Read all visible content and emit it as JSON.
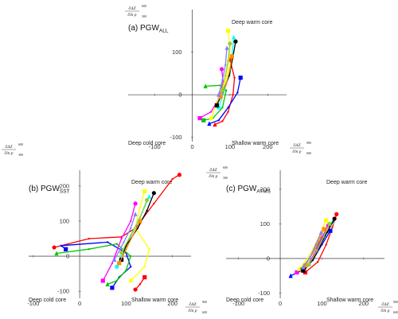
{
  "figure": {
    "colors": {
      "axis": "#555555",
      "series": [
        "#ff0000",
        "#0000ff",
        "#00c800",
        "#ff00ff",
        "#ffff00",
        "#00ffff",
        "#000000",
        "#ff8c00",
        "#8080ff",
        "#9acd32"
      ]
    }
  },
  "chart_data": [
    {
      "type": "line",
      "panel": "a",
      "title": "(a) PGW",
      "title_sub": "ALL",
      "xlabel_num": "∂ΔZ",
      "xlabel_den": "∂ln p",
      "xlabel_sup": "900",
      "xlabel_sub": "600",
      "ylabel_num": "∂ΔZ",
      "ylabel_den": "∂ln p",
      "ylabel_sup": "600",
      "ylabel_sub": "300",
      "xlim": [
        -170,
        250
      ],
      "ylim": [
        -110,
        200
      ],
      "xticks": [
        -100,
        0,
        100,
        200
      ],
      "yticks": [
        -100,
        0,
        100
      ],
      "quadrants": {
        "top_right": "Deep warm core",
        "bottom_left": "Deep cold core",
        "bottom_right": "Shallow warm core"
      },
      "series": [
        {
          "color": "#ff0000",
          "values": [
            [
              100,
              82
            ],
            [
              112,
              40
            ],
            [
              108,
              0
            ],
            [
              95,
              -40
            ],
            [
              80,
              -62
            ],
            [
              60,
              -70
            ]
          ]
        },
        {
          "color": "#0000ff",
          "values": [
            [
              128,
              40
            ],
            [
              120,
              5
            ],
            [
              95,
              -30
            ],
            [
              70,
              -60
            ],
            [
              45,
              -68
            ]
          ]
        },
        {
          "color": "#00c800",
          "values": [
            [
              35,
              20
            ],
            [
              75,
              22
            ],
            [
              90,
              10
            ],
            [
              80,
              -30
            ],
            [
              55,
              -55
            ],
            [
              30,
              -60
            ]
          ]
        },
        {
          "color": "#ff00ff",
          "values": [
            [
              78,
              60
            ],
            [
              82,
              30
            ],
            [
              70,
              -10
            ],
            [
              50,
              -40
            ],
            [
              20,
              -55
            ]
          ]
        },
        {
          "color": "#ffff00",
          "values": [
            [
              95,
              150
            ],
            [
              100,
              110
            ],
            [
              95,
              60
            ],
            [
              85,
              20
            ],
            [
              65,
              -20
            ],
            [
              50,
              -55
            ]
          ]
        },
        {
          "color": "#00ffff",
          "values": [
            [
              110,
              135
            ],
            [
              105,
              90
            ],
            [
              100,
              50
            ],
            [
              85,
              10
            ],
            [
              70,
              -30
            ]
          ]
        },
        {
          "color": "#000000",
          "values": [
            [
              115,
              125
            ],
            [
              108,
              90
            ],
            [
              98,
              45
            ],
            [
              80,
              5
            ],
            [
              65,
              -25
            ]
          ]
        },
        {
          "color": "#ff8c00",
          "values": [
            [
              105,
              90
            ],
            [
              100,
              60
            ],
            [
              90,
              25
            ],
            [
              75,
              -5
            ]
          ]
        },
        {
          "color": "#8080ff",
          "values": [
            [
              92,
              110
            ],
            [
              88,
              70
            ],
            [
              80,
              35
            ],
            [
              70,
              0
            ]
          ]
        },
        {
          "color": "#9acd32",
          "values": [
            [
              100,
              120
            ],
            [
              95,
              80
            ],
            [
              88,
              45
            ],
            [
              78,
              10
            ]
          ]
        }
      ]
    },
    {
      "type": "line",
      "panel": "b",
      "title": "(b) PGW",
      "title_sub": "SST",
      "xlabel_num": "∂ΔZ",
      "xlabel_den": "∂ln p",
      "xlabel_sup": "900",
      "xlabel_sub": "600",
      "ylabel_num": "∂ΔZ",
      "ylabel_den": "∂ln p",
      "ylabel_sup": "600",
      "ylabel_sub": "300",
      "xlim": [
        -110,
        240
      ],
      "ylim": [
        -120,
        245
      ],
      "xticks": [
        -100,
        0,
        100,
        200
      ],
      "yticks": [
        -100,
        0,
        100,
        200
      ],
      "quadrants": {
        "top_right": "Deep warm core",
        "bottom_left": "Deep cold core",
        "bottom_right": "Shallow warm core"
      },
      "series": [
        {
          "color": "#ff0000",
          "values": [
            [
              -55,
              25
            ],
            [
              20,
              50
            ],
            [
              90,
              55
            ],
            [
              120,
              80
            ],
            [
              160,
              150
            ],
            [
              200,
              220
            ],
            [
              215,
              232
            ]
          ]
        },
        {
          "color": "#0000ff",
          "values": [
            [
              -30,
              20
            ],
            [
              -40,
              30
            ],
            [
              60,
              40
            ],
            [
              100,
              10
            ],
            [
              110,
              -30
            ],
            [
              85,
              -60
            ],
            [
              70,
              -90
            ]
          ]
        },
        {
          "color": "#00c800",
          "values": [
            [
              -50,
              8
            ],
            [
              20,
              20
            ],
            [
              80,
              35
            ],
            [
              110,
              0
            ],
            [
              100,
              -40
            ],
            [
              80,
              -70
            ],
            [
              60,
              -80
            ]
          ]
        },
        {
          "color": "#ff00ff",
          "values": [
            [
              120,
              150
            ],
            [
              110,
              100
            ],
            [
              90,
              50
            ],
            [
              70,
              -20
            ],
            [
              50,
              -70
            ]
          ]
        },
        {
          "color": "#ffff00",
          "values": [
            [
              140,
              185
            ],
            [
              130,
              140
            ],
            [
              120,
              80
            ],
            [
              150,
              20
            ],
            [
              140,
              -30
            ],
            [
              110,
              -70
            ]
          ]
        },
        {
          "color": "#00ffff",
          "values": [
            [
              150,
              170
            ],
            [
              135,
              125
            ],
            [
              115,
              70
            ],
            [
              95,
              20
            ],
            [
              80,
              -30
            ]
          ]
        },
        {
          "color": "#000000",
          "values": [
            [
              160,
              180
            ],
            [
              145,
              130
            ],
            [
              125,
              80
            ],
            [
              100,
              30
            ],
            [
              90,
              -10
            ]
          ]
        },
        {
          "color": "#ff8c00",
          "values": [
            [
              130,
              100
            ],
            [
              115,
              60
            ],
            [
              100,
              20
            ],
            [
              85,
              -20
            ]
          ]
        },
        {
          "color": "#8080ff",
          "values": [
            [
              120,
              120
            ],
            [
              110,
              80
            ],
            [
              95,
              40
            ],
            [
              75,
              -10
            ]
          ]
        },
        {
          "color": "#9acd32",
          "values": [
            [
              145,
              160
            ],
            [
              130,
              110
            ],
            [
              110,
              60
            ],
            [
              90,
              10
            ]
          ]
        },
        {
          "color": "#ff0000",
          "values": [
            [
              140,
              -60
            ],
            [
              130,
              -80
            ],
            [
              120,
              -95
            ]
          ]
        }
      ]
    },
    {
      "type": "line",
      "panel": "c",
      "title": "(c) PGW",
      "title_sub": "ATMS",
      "xlabel_num": "∂ΔZ",
      "xlabel_den": "∂ln p",
      "xlabel_sup": "900",
      "xlabel_sub": "600",
      "ylabel_num": "∂ΔZ",
      "ylabel_den": "∂ln p",
      "ylabel_sup": "600",
      "ylabel_sub": "300",
      "xlim": [
        -130,
        250
      ],
      "ylim": [
        -115,
        255
      ],
      "xticks": [
        -100,
        0,
        100,
        200
      ],
      "yticks": [
        -100,
        0,
        100,
        200
      ],
      "quadrants": {
        "top_right": "Deep warm core",
        "bottom_left": "Deep cold core",
        "bottom_right": "Shallow warm core"
      },
      "series": [
        {
          "color": "#ff0000",
          "values": [
            [
              135,
              128
            ],
            [
              125,
              90
            ],
            [
              110,
              40
            ],
            [
              90,
              -10
            ],
            [
              60,
              -40
            ]
          ]
        },
        {
          "color": "#0000ff",
          "values": [
            [
              120,
              80
            ],
            [
              100,
              40
            ],
            [
              80,
              0
            ],
            [
              60,
              -30
            ],
            [
              25,
              -50
            ]
          ]
        },
        {
          "color": "#00c800",
          "values": [
            [
              100,
              60
            ],
            [
              85,
              30
            ],
            [
              70,
              0
            ],
            [
              50,
              -30
            ]
          ]
        },
        {
          "color": "#ff00ff",
          "values": [
            [
              115,
              95
            ],
            [
              100,
              60
            ],
            [
              85,
              20
            ],
            [
              65,
              -20
            ],
            [
              40,
              -40
            ]
          ]
        },
        {
          "color": "#ffff00",
          "values": [
            [
              110,
              110
            ],
            [
              95,
              70
            ],
            [
              80,
              30
            ],
            [
              60,
              -10
            ],
            [
              45,
              -30
            ]
          ]
        },
        {
          "color": "#00ffff",
          "values": [
            [
              125,
              105
            ],
            [
              108,
              65
            ],
            [
              90,
              25
            ],
            [
              70,
              -15
            ]
          ]
        },
        {
          "color": "#000000",
          "values": [
            [
              130,
              115
            ],
            [
              112,
              75
            ],
            [
              95,
              35
            ],
            [
              78,
              -5
            ],
            [
              55,
              -35
            ]
          ]
        },
        {
          "color": "#ff8c00",
          "values": [
            [
              105,
              85
            ],
            [
              92,
              50
            ],
            [
              78,
              15
            ],
            [
              60,
              -20
            ]
          ]
        },
        {
          "color": "#8080ff",
          "values": [
            [
              98,
              75
            ],
            [
              85,
              40
            ],
            [
              72,
              5
            ],
            [
              55,
              -25
            ]
          ]
        },
        {
          "color": "#9acd32",
          "values": [
            [
              118,
              100
            ],
            [
              104,
              62
            ],
            [
              88,
              22
            ],
            [
              68,
              -18
            ]
          ]
        }
      ]
    }
  ]
}
